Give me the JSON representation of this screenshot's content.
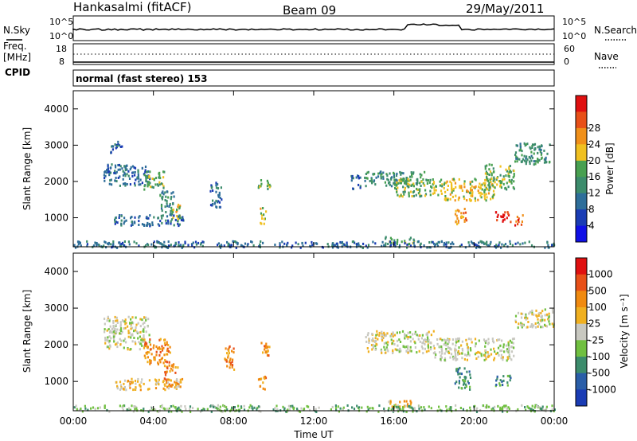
{
  "header": {
    "station": "Hankasalmi (fitACF)",
    "beam": "Beam 09",
    "date": "29/May/2011"
  },
  "sky_panel": {
    "left_label": "N.Sky",
    "right_label": "N.Search",
    "left_ticks": [
      "10^5",
      "10^0"
    ],
    "right_ticks": [
      "10^5",
      "10^0"
    ]
  },
  "freq_panel": {
    "left_label_1": "Freq.",
    "left_label_2": "[MHz]",
    "cpid_label": "CPID",
    "right_label": "Nave",
    "left_ticks": [
      "18",
      "8"
    ],
    "right_ticks": [
      "60",
      "0"
    ]
  },
  "cpid_text": "normal (fast stereo) 153",
  "chart_data": [
    {
      "type": "heatmap",
      "name": "power",
      "ylabel": "Slant Range [km]",
      "ylim": [
        200,
        4500
      ],
      "yticks": [
        "1000",
        "2000",
        "3000",
        "4000"
      ],
      "colorbar": {
        "label": "Power [dB]",
        "ticks": [
          "4",
          "8",
          "12",
          "16",
          "20",
          "24",
          "28"
        ],
        "colors": [
          "#1010e6",
          "#1a3cb4",
          "#2e6e9a",
          "#3c8c6c",
          "#48a050",
          "#f0c020",
          "#f0901a",
          "#e85018",
          "#e01010"
        ]
      },
      "blobs": [
        {
          "t": [
            1.8,
            2.4
          ],
          "r": [
            2800,
            3150
          ],
          "level": 2
        },
        {
          "t": [
            1.5,
            3.8
          ],
          "r": [
            1900,
            2500
          ],
          "level": 2
        },
        {
          "t": [
            3.5,
            4.5
          ],
          "r": [
            1800,
            2300
          ],
          "level": 4
        },
        {
          "t": [
            4.3,
            5.0
          ],
          "r": [
            1100,
            1800
          ],
          "level": 3
        },
        {
          "t": [
            4.9,
            5.3
          ],
          "r": [
            900,
            1400
          ],
          "level": 5
        },
        {
          "t": [
            2.0,
            5.5
          ],
          "r": [
            800,
            1100
          ],
          "level": 2
        },
        {
          "t": [
            6.8,
            7.4
          ],
          "r": [
            1300,
            2000
          ],
          "level": 2
        },
        {
          "t": [
            9.2,
            9.8
          ],
          "r": [
            1800,
            2100
          ],
          "level": 4
        },
        {
          "t": [
            9.3,
            9.6
          ],
          "r": [
            800,
            1300
          ],
          "level": 5
        },
        {
          "t": [
            13.8,
            14.3
          ],
          "r": [
            1800,
            2200
          ],
          "level": 2
        },
        {
          "t": [
            14.5,
            17.5
          ],
          "r": [
            1900,
            2300
          ],
          "level": 3
        },
        {
          "t": [
            16.0,
            18.5
          ],
          "r": [
            1600,
            2100
          ],
          "level": 4
        },
        {
          "t": [
            18.5,
            21.0
          ],
          "r": [
            1500,
            2100
          ],
          "level": 5
        },
        {
          "t": [
            20.5,
            22.0
          ],
          "r": [
            1800,
            2500
          ],
          "level": 4
        },
        {
          "t": [
            22.0,
            23.8
          ],
          "r": [
            2500,
            3100
          ],
          "level": 3
        },
        {
          "t": [
            19.0,
            19.6
          ],
          "r": [
            800,
            1300
          ],
          "level": 6
        },
        {
          "t": [
            21.0,
            21.8
          ],
          "r": [
            900,
            1200
          ],
          "level": 8
        },
        {
          "t": [
            22.0,
            22.4
          ],
          "r": [
            800,
            1100
          ],
          "level": 7
        },
        {
          "t": [
            15.5,
            17.0
          ],
          "r": [
            300,
            500
          ],
          "level": 4
        },
        {
          "t": [
            0.0,
            24.0
          ],
          "r": [
            200,
            380
          ],
          "level": 2
        }
      ]
    },
    {
      "type": "heatmap",
      "name": "velocity",
      "ylabel": "Slant Range [km]",
      "xlabel": "Time UT",
      "ylim": [
        200,
        4500
      ],
      "xlim": [
        0,
        24
      ],
      "xticks": [
        "00:00",
        "04:00",
        "08:00",
        "12:00",
        "16:00",
        "20:00",
        "00:00"
      ],
      "yticks": [
        "1000",
        "2000",
        "3000",
        "4000"
      ],
      "colorbar": {
        "label": "Velocity [m s⁻¹]",
        "ticks": [
          "1000",
          "500",
          "100",
          "25",
          "-25",
          "-100",
          "-500",
          "-1000"
        ],
        "colors": [
          "#1a3cb4",
          "#2a5ea8",
          "#3c8c6c",
          "#70c040",
          "#c8c8c0",
          "#f0b020",
          "#f08a10",
          "#e85018",
          "#e01010"
        ]
      },
      "blobs": [
        {
          "t": [
            1.5,
            3.8
          ],
          "r": [
            1900,
            2800
          ],
          "level": 4
        },
        {
          "t": [
            3.5,
            4.8
          ],
          "r": [
            1500,
            2200
          ],
          "level": 6
        },
        {
          "t": [
            4.5,
            5.2
          ],
          "r": [
            900,
            1500
          ],
          "level": 6
        },
        {
          "t": [
            2.0,
            5.5
          ],
          "r": [
            800,
            1100
          ],
          "level": 5
        },
        {
          "t": [
            7.5,
            8.0
          ],
          "r": [
            1300,
            2000
          ],
          "level": 6
        },
        {
          "t": [
            9.3,
            9.8
          ],
          "r": [
            1700,
            2100
          ],
          "level": 6
        },
        {
          "t": [
            9.2,
            9.6
          ],
          "r": [
            800,
            1200
          ],
          "level": 6
        },
        {
          "t": [
            14.5,
            18.0
          ],
          "r": [
            1800,
            2400
          ],
          "level": 4
        },
        {
          "t": [
            18.0,
            22.0
          ],
          "r": [
            1600,
            2200
          ],
          "level": 4
        },
        {
          "t": [
            22.0,
            24.0
          ],
          "r": [
            2500,
            3000
          ],
          "level": 4
        },
        {
          "t": [
            19.0,
            19.8
          ],
          "r": [
            800,
            1400
          ],
          "level": 2
        },
        {
          "t": [
            21.0,
            21.8
          ],
          "r": [
            900,
            1200
          ],
          "level": 2
        },
        {
          "t": [
            15.5,
            17.0
          ],
          "r": [
            300,
            500
          ],
          "level": 5
        },
        {
          "t": [
            0.0,
            24.0
          ],
          "r": [
            200,
            380
          ],
          "level": 3
        }
      ]
    }
  ]
}
